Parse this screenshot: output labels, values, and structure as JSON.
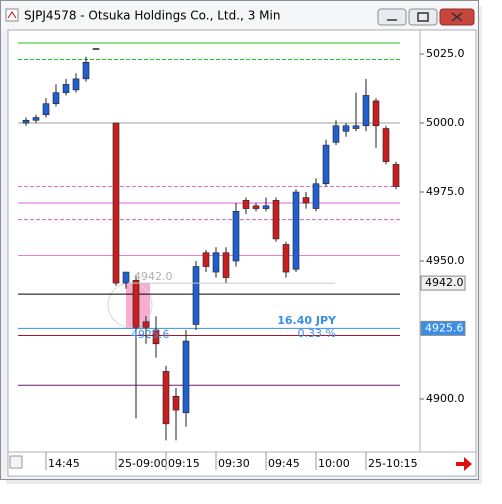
{
  "chart_data": {
    "type": "candlestick",
    "title": "SJPJ4578 - Otsuka Holdings Co., Ltd., 3 Min",
    "categories": [
      null,
      null,
      "14:45",
      null,
      null,
      null,
      null,
      null,
      null,
      "25-09:00",
      null,
      null,
      null,
      null,
      "09:15",
      null,
      null,
      null,
      null,
      "09:30",
      null,
      null,
      null,
      null,
      "09:45",
      null,
      null,
      null,
      null,
      "10:00",
      null,
      null,
      null,
      null,
      "25-10:15",
      null,
      null,
      null
    ],
    "open": [
      5000,
      5001,
      5003,
      5007,
      5011,
      5012,
      5016,
      5027,
      null,
      5000,
      4942,
      4943,
      4928,
      4925,
      4910,
      4901,
      4895,
      4927,
      4953,
      4946,
      4953,
      4950,
      4972,
      4970,
      4969,
      4972,
      4956,
      4947,
      4973,
      4969,
      4978,
      4993,
      4997,
      4998,
      4999,
      5008,
      4998,
      4985
    ],
    "high": [
      5002,
      5003,
      5009,
      5014,
      5016,
      5018,
      5024,
      5027,
      null,
      5000,
      4946,
      4945,
      4930,
      4930,
      4912,
      4904,
      4925,
      4950,
      4954,
      4955,
      4955,
      4971,
      4973,
      4971,
      4973,
      4973,
      4957,
      4976,
      4975,
      4980,
      4994,
      5001,
      5000,
      5011,
      5016,
      5009,
      4999,
      4986
    ],
    "low": [
      4999,
      5000,
      5002,
      5006,
      5010,
      5011,
      5015,
      5027,
      null,
      4941,
      4940,
      4893,
      4920,
      4915,
      4885,
      4885,
      4890,
      4925,
      4946,
      4944,
      4942,
      4948,
      4967,
      4968,
      4968,
      4957,
      4944,
      4946,
      4969,
      4968,
      4977,
      4992,
      4995,
      4997,
      4997,
      4991,
      4985,
      4976
    ],
    "close": [
      5001,
      5002,
      5007,
      5011,
      5014,
      5016,
      5022,
      5027,
      null,
      4942,
      4946,
      4926,
      4926,
      4920,
      4891,
      4896,
      4921,
      4948,
      4948,
      4953,
      4944,
      4968,
      4969,
      4969,
      4970,
      4958,
      4946,
      4975,
      4971,
      4978,
      4992,
      4999,
      4999,
      4999,
      5010,
      4999,
      4986,
      4977
    ],
    "up_color": "#1f5fd0",
    "down_color": "#c81e1e",
    "ylim": [
      4880.8,
      5033.7
    ],
    "yticks": [
      {
        "value": 4900,
        "label": "4900.0"
      },
      {
        "value": 4950,
        "label": "4950.0"
      },
      {
        "value": 4975,
        "label": "4975.0"
      },
      {
        "value": 5000,
        "label": "5000.0"
      },
      {
        "value": 5025,
        "label": "5025.0"
      }
    ],
    "levels": [
      {
        "value": 5029,
        "color": "#22c322",
        "dash": false
      },
      {
        "value": 5023,
        "color": "#22c322",
        "dash": true
      },
      {
        "value": 5000,
        "color": "#a0a0a0",
        "dash": false
      },
      {
        "value": 4977,
        "color": "#e070c0",
        "dash": true
      },
      {
        "value": 4971,
        "color": "#e060e0",
        "dash": false
      },
      {
        "value": 4965,
        "color": "#d060b0",
        "dash": true
      },
      {
        "value": 4952,
        "color": "#f080c8",
        "dash": false
      },
      {
        "value": 4938,
        "color": "#000000",
        "dash": false
      },
      {
        "value": 4925.6,
        "color": "#3a8ee8",
        "dash": false
      },
      {
        "value": 4923,
        "color": "#a01830",
        "dash": false
      },
      {
        "value": 4905,
        "color": "#701870",
        "dash": false
      }
    ],
    "price_tags": [
      {
        "value": 4942,
        "label": "4942.0",
        "bg": "#f0f0f0",
        "fg": "#000000"
      },
      {
        "value": 4925.6,
        "label": "4925.6",
        "bg": "#3a8ee8",
        "fg": "#ffffff"
      }
    ],
    "annotations": [
      "4942.0",
      "16.40 JPY",
      "0.33 %",
      "4925.6"
    ]
  }
}
